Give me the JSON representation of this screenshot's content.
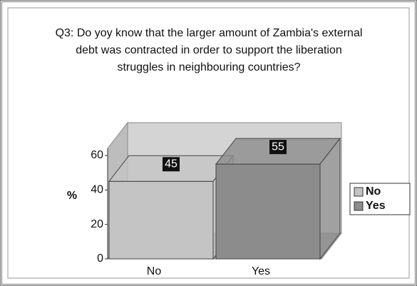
{
  "chart_data": {
    "type": "bar3d",
    "title": "Q3: Do yoy know that the larger amount of Zambia's external debt was contracted in order to support the liberation struggles in neighbouring countries?",
    "ylabel": "%",
    "categories": [
      "No",
      "Yes"
    ],
    "values": [
      45,
      55
    ],
    "colors": [
      "#c4c4c4",
      "#8c8c8c"
    ],
    "ylim": [
      0,
      60
    ],
    "yticks": [
      0,
      20,
      40,
      60
    ],
    "grid": false,
    "legend": "right"
  }
}
